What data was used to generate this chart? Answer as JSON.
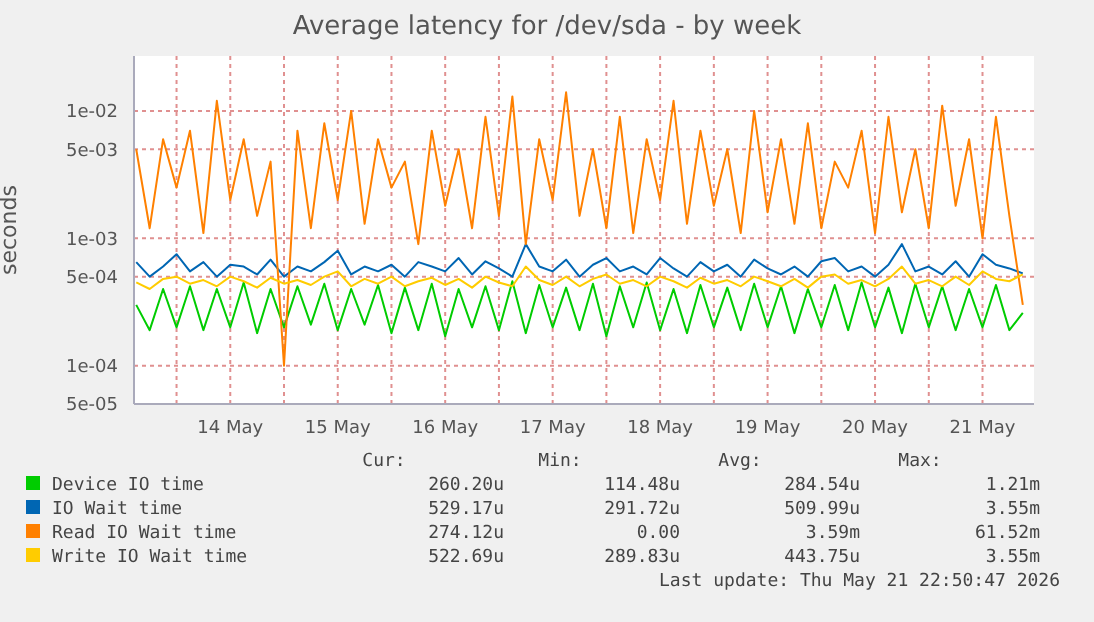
{
  "chart_data": {
    "type": "line",
    "title": "Average latency for /dev/sda - by week",
    "ylabel": "seconds",
    "log": "y",
    "grid": true,
    "legend": "bottom",
    "marker": "none",
    "line_style": "solid",
    "x": [
      "2026-05-13T15:00",
      "2026-05-13T18:00",
      "2026-05-13T21:00",
      "2026-05-14T00:00",
      "2026-05-14T03:00",
      "2026-05-14T06:00",
      "2026-05-14T09:00",
      "2026-05-14T12:00",
      "2026-05-14T15:00",
      "2026-05-14T18:00",
      "2026-05-14T21:00",
      "2026-05-15T00:00",
      "2026-05-15T03:00",
      "2026-05-15T06:00",
      "2026-05-15T09:00",
      "2026-05-15T12:00",
      "2026-05-15T15:00",
      "2026-05-15T18:00",
      "2026-05-15T21:00",
      "2026-05-16T00:00",
      "2026-05-16T03:00",
      "2026-05-16T06:00",
      "2026-05-16T09:00",
      "2026-05-16T12:00",
      "2026-05-16T15:00",
      "2026-05-16T18:00",
      "2026-05-16T21:00",
      "2026-05-17T00:00",
      "2026-05-17T03:00",
      "2026-05-17T06:00",
      "2026-05-17T09:00",
      "2026-05-17T12:00",
      "2026-05-17T15:00",
      "2026-05-17T18:00",
      "2026-05-17T21:00",
      "2026-05-18T00:00",
      "2026-05-18T03:00",
      "2026-05-18T06:00",
      "2026-05-18T09:00",
      "2026-05-18T12:00",
      "2026-05-18T15:00",
      "2026-05-18T18:00",
      "2026-05-18T21:00",
      "2026-05-19T00:00",
      "2026-05-19T03:00",
      "2026-05-19T06:00",
      "2026-05-19T09:00",
      "2026-05-19T12:00",
      "2026-05-19T15:00",
      "2026-05-19T18:00",
      "2026-05-19T21:00",
      "2026-05-20T00:00",
      "2026-05-20T03:00",
      "2026-05-20T06:00",
      "2026-05-20T09:00",
      "2026-05-20T12:00",
      "2026-05-20T15:00",
      "2026-05-20T18:00",
      "2026-05-20T21:00",
      "2026-05-21T00:00",
      "2026-05-21T03:00",
      "2026-05-21T06:00",
      "2026-05-21T09:00",
      "2026-05-21T12:00",
      "2026-05-21T15:00",
      "2026-05-21T18:00",
      "2026-05-21T21:00"
    ],
    "xlim": [
      "2026-05-13T14:30",
      "2026-05-21T23:30"
    ],
    "xticks": [
      {
        "value": "2026-05-14T00:00",
        "label": null
      },
      {
        "value": "2026-05-14T12:00",
        "label": "14 May"
      },
      {
        "value": "2026-05-15T00:00",
        "label": null
      },
      {
        "value": "2026-05-15T12:00",
        "label": "15 May"
      },
      {
        "value": "2026-05-16T00:00",
        "label": null
      },
      {
        "value": "2026-05-16T12:00",
        "label": "16 May"
      },
      {
        "value": "2026-05-17T00:00",
        "label": null
      },
      {
        "value": "2026-05-17T12:00",
        "label": "17 May"
      },
      {
        "value": "2026-05-18T00:00",
        "label": null
      },
      {
        "value": "2026-05-18T12:00",
        "label": "18 May"
      },
      {
        "value": "2026-05-19T00:00",
        "label": null
      },
      {
        "value": "2026-05-19T12:00",
        "label": "19 May"
      },
      {
        "value": "2026-05-20T00:00",
        "label": null
      },
      {
        "value": "2026-05-20T12:00",
        "label": "20 May"
      },
      {
        "value": "2026-05-21T00:00",
        "label": null
      },
      {
        "value": "2026-05-21T12:00",
        "label": "21 May"
      }
    ],
    "ylim": [
      5e-05,
      0.027
    ],
    "yticks": [
      {
        "value": 5e-05,
        "label": "5e-05"
      },
      {
        "value": 0.0001,
        "label": "1e-04"
      },
      {
        "value": 0.0005,
        "label": "5e-04"
      },
      {
        "value": 0.001,
        "label": "1e-03"
      },
      {
        "value": 0.005,
        "label": "5e-03"
      },
      {
        "value": 0.01,
        "label": "1e-02"
      }
    ],
    "series": [
      {
        "name": "Device IO time",
        "color": "#00cc00",
        "values": [
          0.0003,
          0.00019,
          0.0004,
          0.0002,
          0.00042,
          0.00019,
          0.0004,
          0.0002,
          0.00045,
          0.00018,
          0.0004,
          0.0002,
          0.00042,
          0.00021,
          0.00044,
          0.00019,
          0.0004,
          0.00021,
          0.00043,
          0.00018,
          0.00041,
          0.00019,
          0.00044,
          0.00017,
          0.0004,
          0.0002,
          0.00042,
          0.00019,
          0.00046,
          0.00018,
          0.00043,
          0.0002,
          0.00041,
          0.00019,
          0.00044,
          0.00017,
          0.00042,
          0.0002,
          0.00045,
          0.00019,
          0.0004,
          0.00018,
          0.00043,
          0.0002,
          0.00041,
          0.00019,
          0.00044,
          0.0002,
          0.00042,
          0.00018,
          0.0004,
          0.0002,
          0.00043,
          0.00019,
          0.00045,
          0.0002,
          0.00041,
          0.00018,
          0.00044,
          0.0002,
          0.00042,
          0.00019,
          0.0004,
          0.0002,
          0.00043,
          0.00019,
          0.00026
        ]
      },
      {
        "name": "IO Wait time",
        "color": "#0066b3",
        "values": [
          0.00065,
          0.0005,
          0.0006,
          0.00075,
          0.00055,
          0.00065,
          0.0005,
          0.00062,
          0.0006,
          0.00052,
          0.00068,
          0.0005,
          0.0006,
          0.00055,
          0.00065,
          0.0008,
          0.00052,
          0.0006,
          0.00055,
          0.00062,
          0.0005,
          0.00065,
          0.0006,
          0.00055,
          0.0007,
          0.00052,
          0.00066,
          0.00058,
          0.0005,
          0.0009,
          0.0006,
          0.00055,
          0.00068,
          0.0005,
          0.00062,
          0.0007,
          0.00055,
          0.0006,
          0.00052,
          0.0007,
          0.00058,
          0.0005,
          0.00065,
          0.00055,
          0.00062,
          0.0005,
          0.00068,
          0.00058,
          0.00052,
          0.0006,
          0.0005,
          0.00066,
          0.0007,
          0.00055,
          0.0006,
          0.0005,
          0.00062,
          0.0009,
          0.00055,
          0.0006,
          0.00052,
          0.00066,
          0.0005,
          0.00075,
          0.00062,
          0.00058,
          0.00053
        ]
      },
      {
        "name": "Read IO Wait time",
        "color": "#ff8000",
        "values": [
          0.005,
          0.0012,
          0.006,
          0.0025,
          0.007,
          0.0011,
          0.012,
          0.002,
          0.006,
          0.0015,
          0.004,
          0.0001,
          0.007,
          0.0012,
          0.008,
          0.002,
          0.01,
          0.0013,
          0.006,
          0.0025,
          0.004,
          0.0009,
          0.007,
          0.0018,
          0.005,
          0.0012,
          0.009,
          0.0015,
          0.013,
          0.0009,
          0.006,
          0.002,
          0.014,
          0.0015,
          0.005,
          0.0012,
          0.009,
          0.0011,
          0.006,
          0.002,
          0.012,
          0.0013,
          0.007,
          0.0018,
          0.005,
          0.0011,
          0.01,
          0.0016,
          0.006,
          0.0013,
          0.008,
          0.0012,
          0.004,
          0.0025,
          0.007,
          0.0011,
          0.009,
          0.0016,
          0.005,
          0.0012,
          0.011,
          0.0018,
          0.006,
          0.001,
          0.009,
          0.0015,
          0.0003
        ]
      },
      {
        "name": "Write IO Wait time",
        "color": "#ffcc00",
        "values": [
          0.00045,
          0.0004,
          0.00048,
          0.0005,
          0.00044,
          0.00047,
          0.00042,
          0.0005,
          0.00046,
          0.00041,
          0.00049,
          0.00044,
          0.00047,
          0.00043,
          0.0005,
          0.00055,
          0.00042,
          0.00048,
          0.00044,
          0.0005,
          0.00042,
          0.00046,
          0.00049,
          0.00043,
          0.00048,
          0.00041,
          0.0005,
          0.00045,
          0.00042,
          0.0006,
          0.00047,
          0.00043,
          0.0005,
          0.00042,
          0.00048,
          0.00052,
          0.00044,
          0.00047,
          0.00042,
          0.0005,
          0.00046,
          0.00041,
          0.00049,
          0.00044,
          0.00047,
          0.00042,
          0.0005,
          0.00046,
          0.00042,
          0.00048,
          0.00041,
          0.0005,
          0.00052,
          0.00044,
          0.00047,
          0.00042,
          0.00048,
          0.0006,
          0.00044,
          0.00047,
          0.00042,
          0.0005,
          0.00043,
          0.00055,
          0.00048,
          0.00046,
          0.00052
        ]
      }
    ],
    "annotations": [
      "Cur:",
      "Min:",
      "Avg:",
      "Max:",
      "260.20u",
      "114.48u",
      "284.54u",
      "1.21m",
      "529.17u",
      "291.72u",
      "509.99u",
      "3.55m",
      "274.12u",
      "0.00",
      "3.59m",
      "61.52m",
      "522.69u",
      "289.83u",
      "443.75u",
      "3.55m",
      "Last update: Thu May 21 22:50:47 2026"
    ]
  }
}
